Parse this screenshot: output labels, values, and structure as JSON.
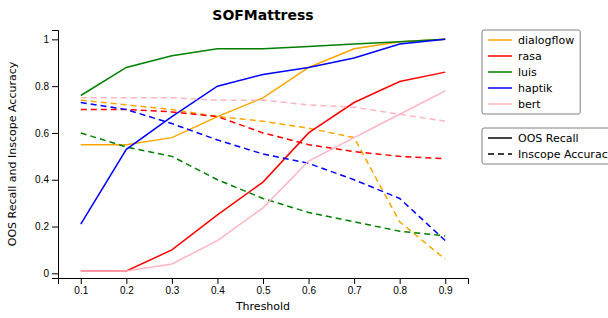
{
  "chart_data": {
    "type": "line",
    "title": "SOFMattress",
    "x_label": "Threshold",
    "y_label": "OOS Recall and Inscope Accuracy",
    "x": [
      0.1,
      0.2,
      0.3,
      0.4,
      0.5,
      0.6,
      0.7,
      0.8,
      0.9
    ],
    "series": [
      {
        "name": "dialogflow",
        "color": "#FFA500",
        "line_style": "solid",
        "values": [
          0.55,
          0.55,
          0.58,
          0.67,
          0.75,
          0.88,
          0.96,
          0.99,
          1.0
        ]
      },
      {
        "name": "dialogflow",
        "color": "#FFA500",
        "line_style": "dashed",
        "values": [
          0.74,
          0.72,
          0.7,
          0.67,
          0.65,
          0.62,
          0.58,
          0.22,
          0.06
        ]
      },
      {
        "name": "rasa",
        "color": "#FF0000",
        "line_style": "solid",
        "values": [
          0.01,
          0.01,
          0.1,
          0.25,
          0.39,
          0.6,
          0.73,
          0.82,
          0.86
        ]
      },
      {
        "name": "rasa",
        "color": "#FF0000",
        "line_style": "dashed",
        "values": [
          0.7,
          0.7,
          0.69,
          0.67,
          0.6,
          0.55,
          0.52,
          0.5,
          0.49
        ]
      },
      {
        "name": "luis",
        "color": "#008000",
        "line_style": "solid",
        "values": [
          0.76,
          0.88,
          0.93,
          0.96,
          0.96,
          0.97,
          0.98,
          0.99,
          1.0
        ]
      },
      {
        "name": "luis",
        "color": "#008000",
        "line_style": "dashed",
        "values": [
          0.6,
          0.54,
          0.5,
          0.4,
          0.32,
          0.26,
          0.22,
          0.18,
          0.16
        ]
      },
      {
        "name": "haptik",
        "color": "#0000FF",
        "line_style": "solid",
        "values": [
          0.21,
          0.53,
          0.67,
          0.8,
          0.85,
          0.88,
          0.92,
          0.98,
          1.0
        ]
      },
      {
        "name": "haptik",
        "color": "#0000FF",
        "line_style": "dashed",
        "values": [
          0.73,
          0.7,
          0.64,
          0.57,
          0.51,
          0.47,
          0.4,
          0.32,
          0.14
        ]
      },
      {
        "name": "bert",
        "color": "#FFB6C1",
        "line_style": "solid",
        "values": [
          0.01,
          0.01,
          0.04,
          0.14,
          0.28,
          0.48,
          0.58,
          0.68,
          0.78
        ]
      },
      {
        "name": "bert",
        "color": "#FFB6C1",
        "line_style": "dashed",
        "values": [
          0.75,
          0.75,
          0.75,
          0.74,
          0.74,
          0.72,
          0.71,
          0.68,
          0.65
        ]
      }
    ],
    "style_legend": [
      {
        "name": "OOS Recall",
        "color": "#000000",
        "line_style": "solid"
      },
      {
        "name": "Inscope Accuracy",
        "color": "#000000",
        "line_style": "dashed"
      }
    ],
    "xlim": [
      0.05,
      0.95
    ],
    "xticks": [
      0.1,
      0.2,
      0.3,
      0.4,
      0.5,
      0.6,
      0.7,
      0.8,
      0.9
    ],
    "ylim": [
      -0.02,
      1.04
    ],
    "yticks": [
      0,
      0.2,
      0.4,
      0.6,
      0.8,
      1
    ],
    "grid": false,
    "legend": "right"
  }
}
